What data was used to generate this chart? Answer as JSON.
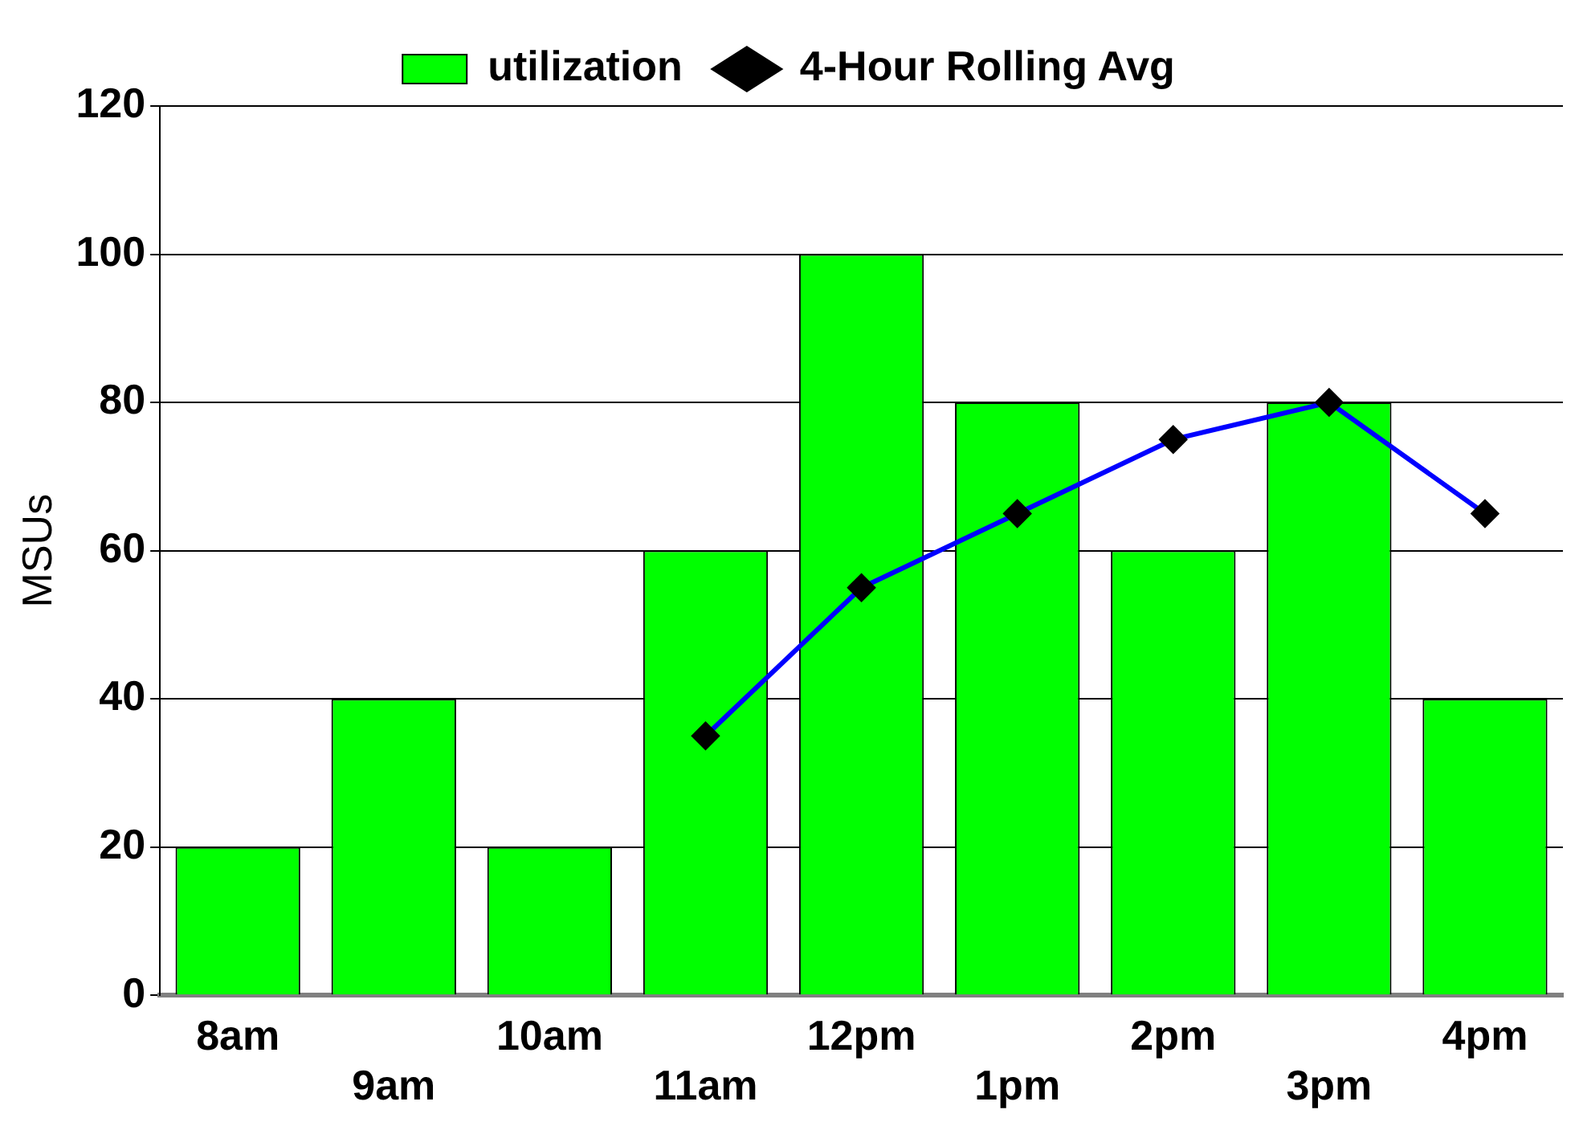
{
  "chart_data": {
    "type": "bar",
    "ylabel": "MSUs",
    "categories": [
      "8am",
      "9am",
      "10am",
      "11am",
      "12pm",
      "1pm",
      "2pm",
      "3pm",
      "4pm"
    ],
    "series": [
      {
        "name": "utilization",
        "color": "#00ff00",
        "values": [
          20,
          40,
          20,
          60,
          100,
          80,
          60,
          80,
          40
        ]
      },
      {
        "name": "4-Hour Rolling Avg",
        "type": "line",
        "color": "#0000ff",
        "marker": "diamond",
        "values": [
          null,
          null,
          null,
          35,
          55,
          65,
          75,
          80,
          65
        ]
      }
    ],
    "ylim": [
      0,
      120
    ],
    "yticks": [
      0,
      20,
      40,
      60,
      80,
      100,
      120
    ],
    "grid": "y",
    "legend": "top"
  }
}
